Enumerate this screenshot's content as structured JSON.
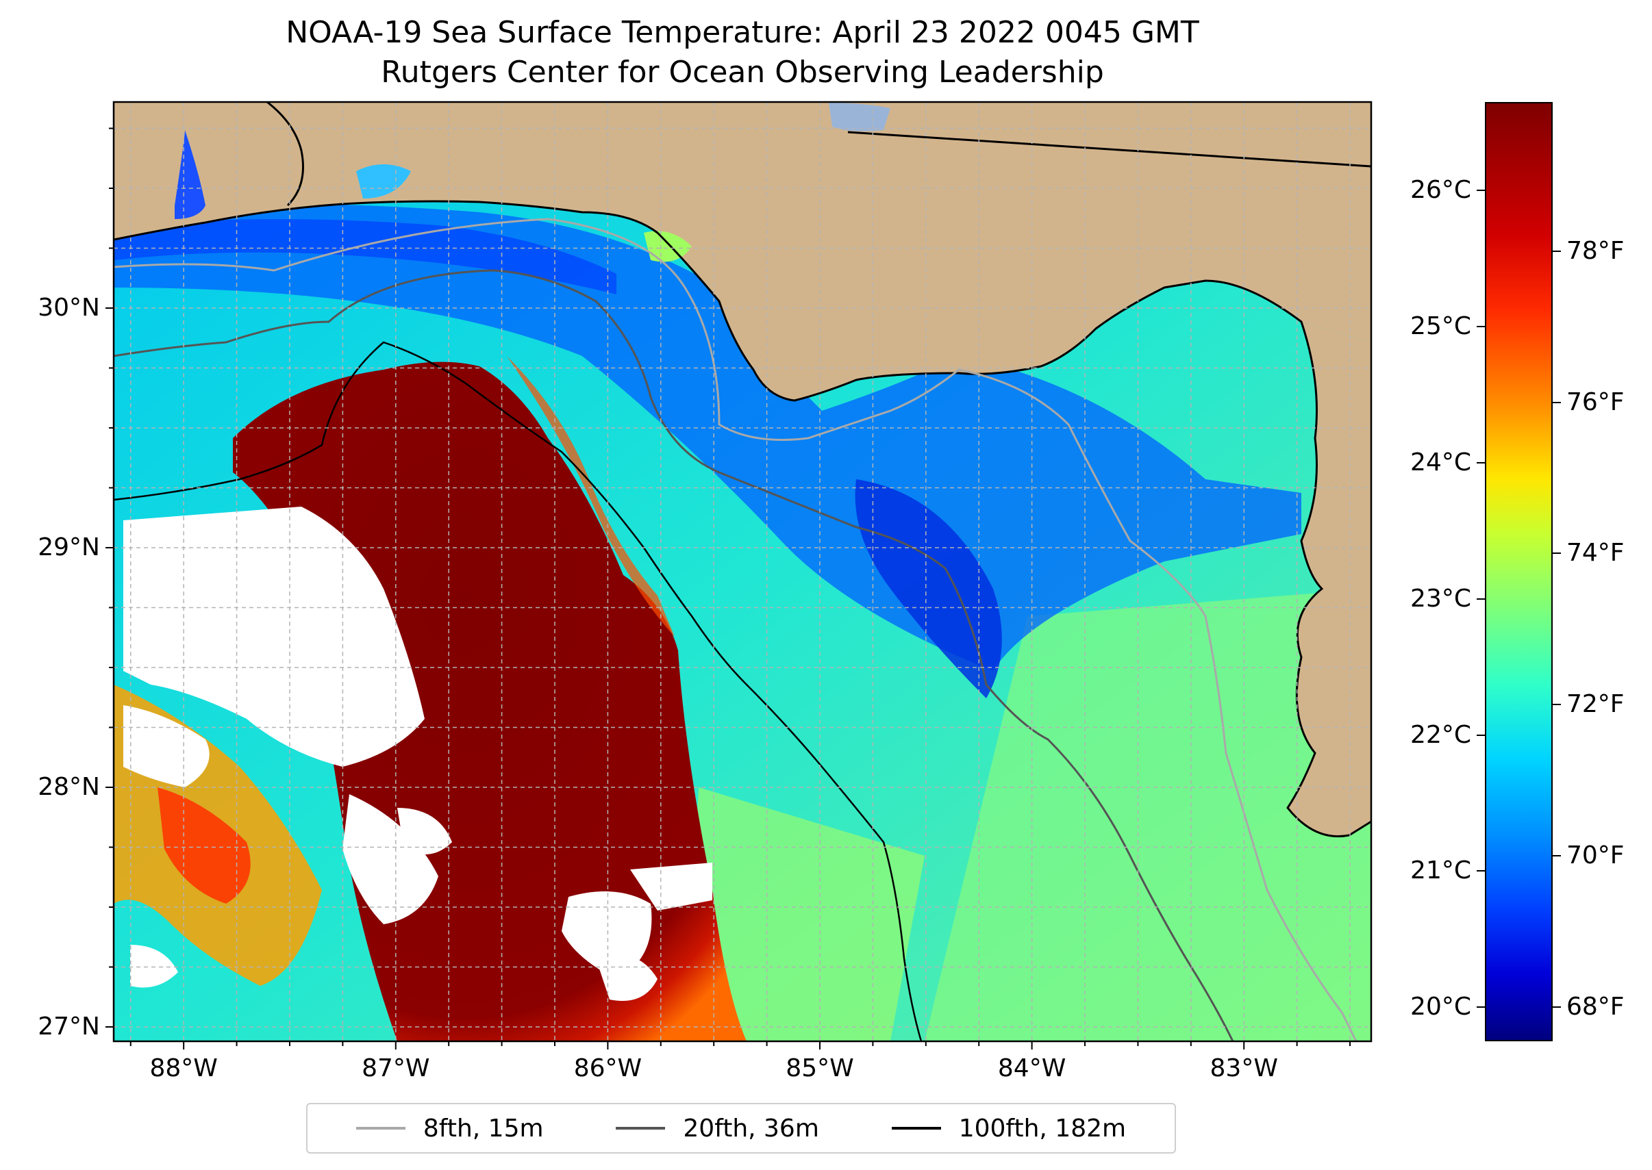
{
  "title": {
    "line1": "NOAA-19 Sea Surface Temperature: April 23 2022 0045 GMT",
    "line2": "Rutgers Center for Ocean Observing Leadership"
  },
  "map": {
    "lon_ticks": [
      "88°W",
      "87°W",
      "86°W",
      "85°W",
      "84°W",
      "83°W"
    ],
    "lat_ticks": [
      "30°N",
      "29°N",
      "28°N",
      "27°N"
    ],
    "lon_values": [
      -88,
      -87,
      -86,
      -85,
      -84,
      -83
    ],
    "lat_values": [
      30,
      29,
      28,
      27
    ],
    "extent": {
      "lon_min": -88.33,
      "lon_max": -82.4,
      "lat_min": 26.94,
      "lat_max": 30.86
    },
    "land_color": "#d2b48c",
    "grid_color": "#b4b4b4"
  },
  "legend": {
    "items": [
      {
        "label": "8fth, 15m",
        "color": "#a9a9a9"
      },
      {
        "label": "20fth, 36m",
        "color": "#555555"
      },
      {
        "label": "100fth, 182m",
        "color": "#000000"
      }
    ]
  },
  "colorbar": {
    "celsius_ticks": [
      "26°C",
      "25°C",
      "24°C",
      "23°C",
      "22°C",
      "21°C",
      "20°C"
    ],
    "celsius_values": [
      26,
      25,
      24,
      23,
      22,
      21,
      20
    ],
    "fahrenheit_ticks": [
      "78°F",
      "76°F",
      "74°F",
      "72°F",
      "70°F",
      "68°F"
    ],
    "fahrenheit_values": [
      78,
      76,
      74,
      72,
      70,
      68
    ],
    "range_c": [
      19.75,
      26.65
    ],
    "colors": [
      "#00007f",
      "#0000ff",
      "#0080ff",
      "#00e5ff",
      "#4dff9f",
      "#c8ff30",
      "#ffe600",
      "#ff8c00",
      "#ff2200",
      "#7f0000"
    ]
  }
}
